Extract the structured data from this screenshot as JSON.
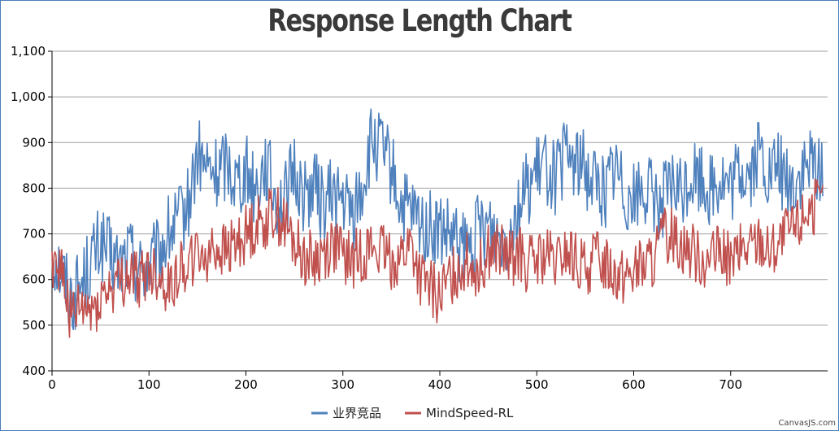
{
  "chart_data": {
    "type": "line",
    "title": "Response Length Chart",
    "xlabel": "",
    "ylabel": "",
    "xlim": [
      0,
      800
    ],
    "ylim": [
      400,
      1100
    ],
    "x_ticks": [
      0,
      100,
      200,
      300,
      400,
      500,
      600,
      700
    ],
    "x_tick_labels": [
      "0",
      "100",
      "200",
      "300",
      "400",
      "500",
      "600",
      "700"
    ],
    "y_ticks": [
      400,
      500,
      600,
      700,
      800,
      900,
      1000,
      1100
    ],
    "y_tick_labels": [
      "400",
      "500",
      "600",
      "700",
      "800",
      "900",
      "1,000",
      "1,100"
    ],
    "grid": "horizontal",
    "legend_position": "bottom",
    "series": [
      {
        "name": "业界竞品",
        "color": "#4f81bd",
        "x": [
          0,
          10,
          20,
          30,
          40,
          50,
          60,
          70,
          80,
          90,
          100,
          110,
          120,
          130,
          140,
          150,
          160,
          170,
          180,
          190,
          200,
          210,
          220,
          230,
          240,
          250,
          260,
          270,
          280,
          290,
          300,
          310,
          320,
          330,
          340,
          350,
          360,
          370,
          380,
          390,
          400,
          410,
          420,
          430,
          440,
          450,
          460,
          470,
          480,
          490,
          500,
          510,
          520,
          530,
          540,
          550,
          560,
          570,
          580,
          590,
          600,
          610,
          620,
          630,
          640,
          650,
          660,
          670,
          680,
          690,
          700,
          710,
          720,
          730,
          740,
          750,
          760,
          770,
          780,
          790
        ],
        "values": [
          660,
          620,
          560,
          590,
          640,
          680,
          650,
          630,
          660,
          620,
          630,
          650,
          700,
          720,
          760,
          870,
          840,
          830,
          860,
          820,
          840,
          800,
          860,
          780,
          770,
          840,
          780,
          810,
          760,
          790,
          770,
          740,
          800,
          900,
          880,
          840,
          760,
          740,
          720,
          710,
          700,
          690,
          670,
          660,
          710,
          720,
          700,
          700,
          760,
          800,
          830,
          850,
          820,
          870,
          860,
          840,
          820,
          790,
          850,
          800,
          780,
          800,
          780,
          770,
          800,
          790,
          830,
          820,
          800,
          820,
          790,
          840,
          830,
          880,
          820,
          850,
          800,
          820,
          840,
          850
        ]
      },
      {
        "name": "MindSpeed-RL",
        "color": "#c0504d",
        "x": [
          0,
          10,
          20,
          30,
          40,
          50,
          60,
          70,
          80,
          90,
          100,
          110,
          120,
          130,
          140,
          150,
          160,
          170,
          180,
          190,
          200,
          210,
          220,
          230,
          240,
          250,
          260,
          270,
          280,
          290,
          300,
          310,
          320,
          330,
          340,
          350,
          360,
          370,
          380,
          390,
          400,
          410,
          420,
          430,
          440,
          450,
          460,
          470,
          480,
          490,
          500,
          510,
          520,
          530,
          540,
          550,
          560,
          570,
          580,
          590,
          600,
          610,
          620,
          630,
          640,
          650,
          660,
          670,
          680,
          690,
          700,
          710,
          720,
          730,
          740,
          750,
          760,
          770,
          780,
          790
        ],
        "values": [
          650,
          620,
          510,
          530,
          530,
          560,
          580,
          590,
          610,
          600,
          620,
          610,
          580,
          620,
          640,
          650,
          660,
          670,
          660,
          680,
          700,
          720,
          730,
          750,
          720,
          680,
          650,
          640,
          660,
          680,
          650,
          640,
          660,
          670,
          660,
          640,
          650,
          680,
          600,
          580,
          560,
          600,
          630,
          640,
          620,
          660,
          670,
          640,
          660,
          630,
          640,
          650,
          630,
          660,
          640,
          620,
          650,
          640,
          620,
          610,
          620,
          630,
          640,
          690,
          700,
          680,
          660,
          650,
          640,
          660,
          640,
          660,
          670,
          690,
          660,
          680,
          700,
          720,
          760,
          760
        ]
      }
    ]
  },
  "credit": "CanvasJS.com"
}
